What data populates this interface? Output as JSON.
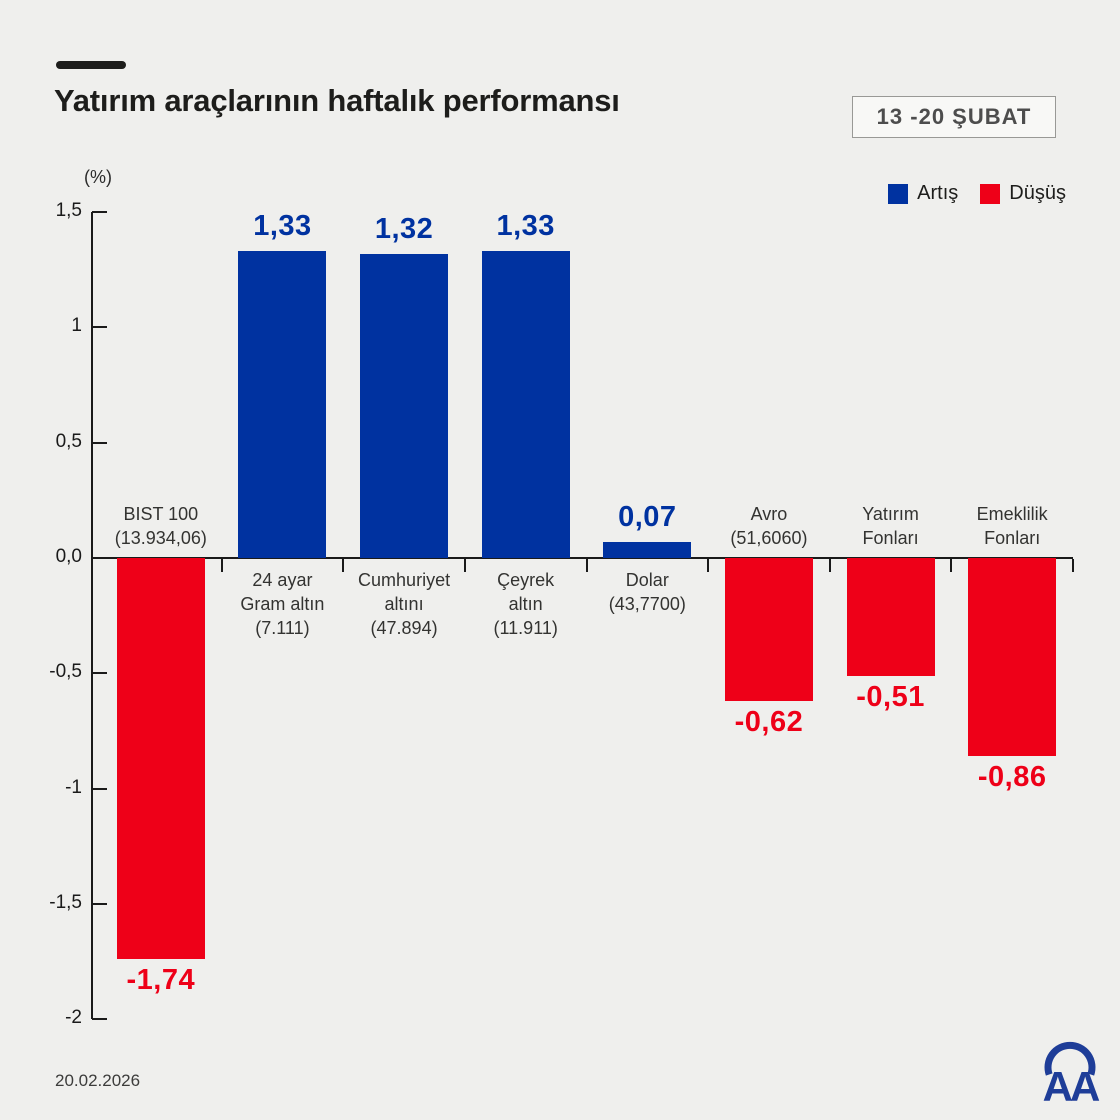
{
  "header": {
    "title": "Yatırım araçlarının haftalık performansı",
    "date_badge": "13 -20 ŞUBAT"
  },
  "footer": {
    "date": "20.02.2026",
    "logo": "AA"
  },
  "chart_data": {
    "type": "bar",
    "title": "Yatırım araçlarının haftalık performansı",
    "xlabel": "",
    "ylabel": "(%)",
    "ylim": [
      -2,
      1.5
    ],
    "grid": false,
    "colors": {
      "positive": "#0032a0",
      "negative": "#ee0018"
    },
    "legend": {
      "position": "top-right",
      "entries": [
        {
          "label": "Artış",
          "color": "#0032a0"
        },
        {
          "label": "Düşüş",
          "color": "#ee0018"
        }
      ]
    },
    "y_axis": {
      "ticks": [
        {
          "v": 1.5,
          "label": "1,5"
        },
        {
          "v": 1,
          "label": "1"
        },
        {
          "v": 0.5,
          "label": "0,5"
        },
        {
          "v": 0,
          "label": "0,0"
        },
        {
          "v": -0.5,
          "label": "-0,5"
        },
        {
          "v": -1,
          "label": "-1"
        },
        {
          "v": -1.5,
          "label": "-1,5"
        },
        {
          "v": -2,
          "label": "-2"
        }
      ]
    },
    "categories": [
      {
        "label_lines": [
          "BIST 100",
          "(13.934,06)"
        ],
        "value": -1.74,
        "value_label": "-1,74"
      },
      {
        "label_lines": [
          "24 ayar",
          "Gram altın",
          "(7.111)"
        ],
        "value": 1.33,
        "value_label": "1,33"
      },
      {
        "label_lines": [
          "Cumhuriyet",
          "altını",
          "(47.894)"
        ],
        "value": 1.32,
        "value_label": "1,32"
      },
      {
        "label_lines": [
          "Çeyrek",
          "altın",
          "(11.911)"
        ],
        "value": 1.33,
        "value_label": "1,33"
      },
      {
        "label_lines": [
          "Dolar",
          "(43,7700)"
        ],
        "value": 0.07,
        "value_label": "0,07"
      },
      {
        "label_lines": [
          "Avro",
          "(51,6060)"
        ],
        "value": -0.62,
        "value_label": "-0,62"
      },
      {
        "label_lines": [
          "Yatırım",
          "Fonları"
        ],
        "value": -0.51,
        "value_label": "-0,51"
      },
      {
        "label_lines": [
          "Emeklilik",
          "Fonları"
        ],
        "value": -0.86,
        "value_label": "-0,86"
      }
    ]
  }
}
